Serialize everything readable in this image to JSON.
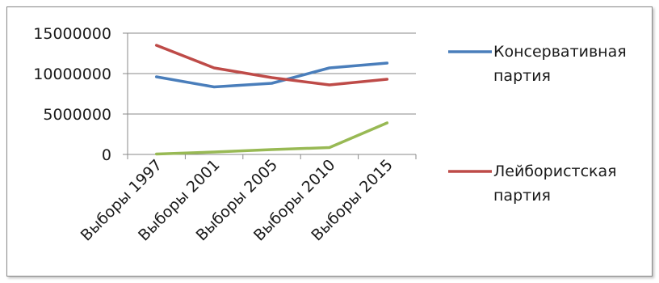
{
  "chart_data": {
    "type": "line",
    "title": "",
    "xlabel": "",
    "ylabel": "",
    "categories": [
      "Выборы 1997",
      "Выборы 2001",
      "Выборы 2005",
      "Выборы 2010",
      "Выборы 2015"
    ],
    "ylim": [
      0,
      15000000
    ],
    "yticks": [
      "15000000",
      "10000000",
      "5000000",
      "0"
    ],
    "grid": true,
    "legend_position": "right",
    "series": [
      {
        "label_lines": [
          "Консервативная",
          "партия"
        ],
        "color": "#4a7ebb",
        "values": [
          9600000,
          8350000,
          8800000,
          10700000,
          11300000
        ]
      },
      {
        "label_lines": [
          "Лейбористская",
          "партия"
        ],
        "color": "#be4b48",
        "values": [
          13500000,
          10700000,
          9500000,
          8600000,
          9300000
        ]
      },
      {
        "label_lines": [
          "",
          ""
        ],
        "color": "#98b954",
        "values": [
          50000,
          300000,
          600000,
          850000,
          3900000
        ]
      }
    ]
  }
}
